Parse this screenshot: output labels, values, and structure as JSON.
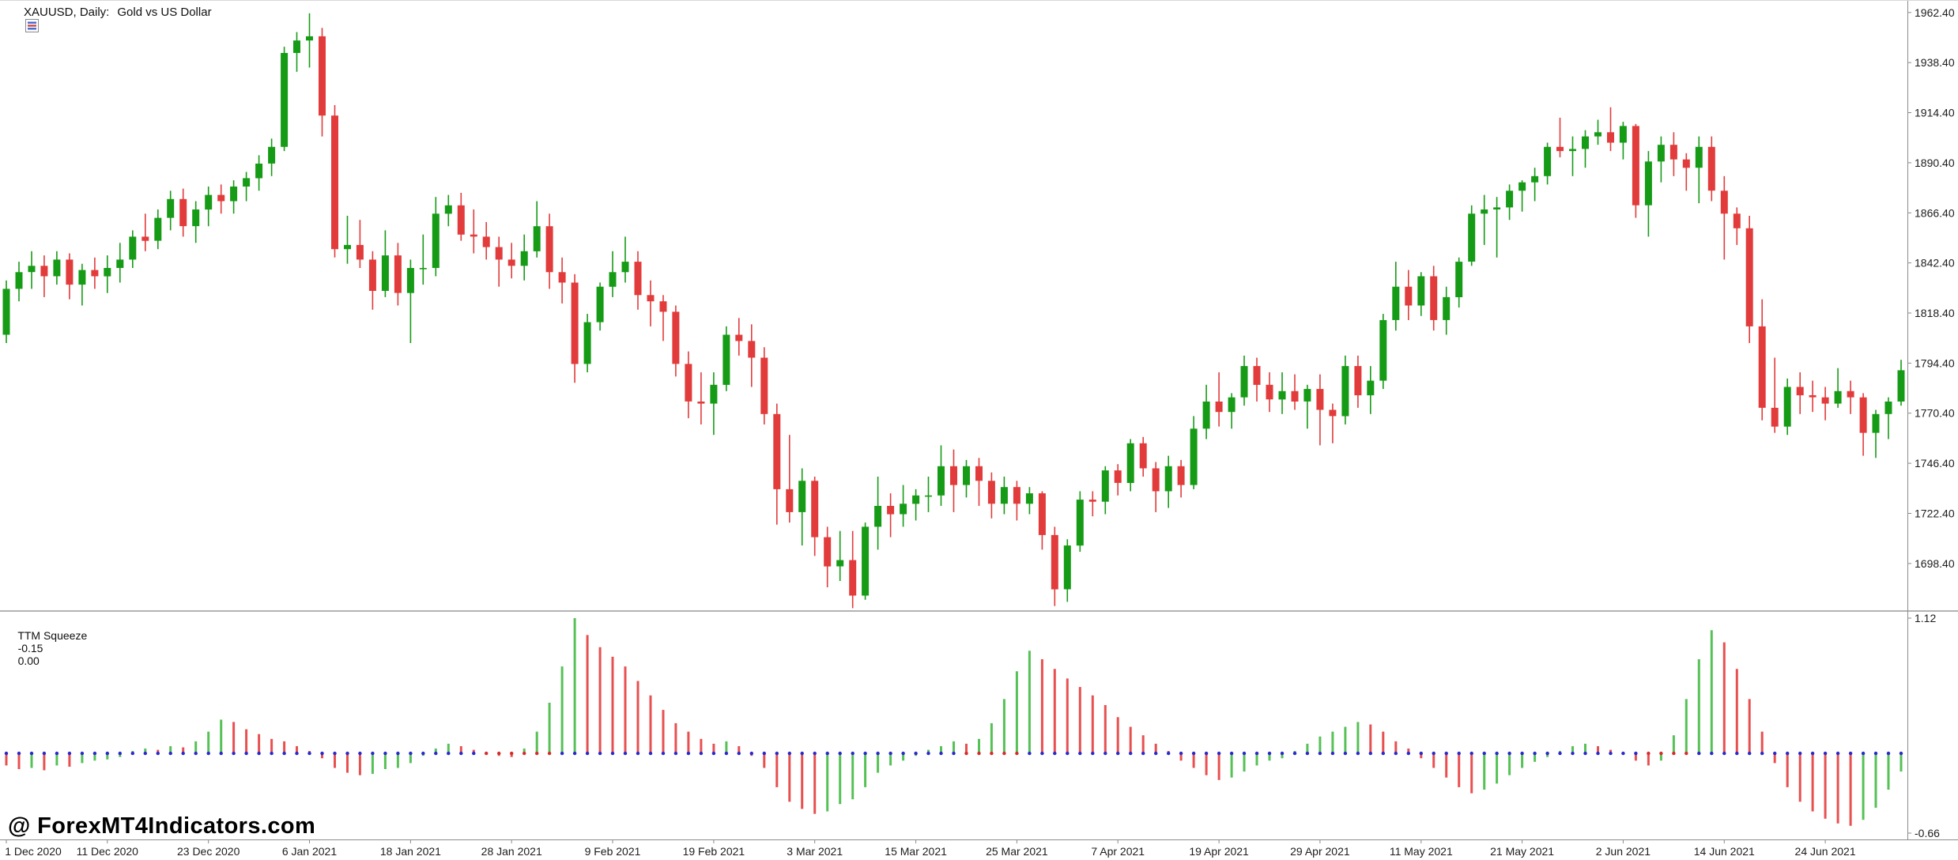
{
  "chart_window": {
    "title": {
      "symbol_period": "XAUUSD, Daily:",
      "description": "Gold vs US Dollar"
    },
    "watermark": "@ ForexMT4Indicators.com"
  },
  "indicator": {
    "name": "TTM Squeeze",
    "value_momentum": "-0.15",
    "value_squeeze": "0.00"
  },
  "colors": {
    "bull": "#169b16",
    "bear": "#e23b3b",
    "hist_up": "#56c156",
    "hist_down": "#e85050",
    "dot_off": "#2929cc",
    "dot_on": "#d52b2b",
    "text": "#1c1c1c",
    "separator": "#b3b3b3",
    "axis_line": "#8a8a8a"
  },
  "chart_data": [
    {
      "type": "candlestick",
      "symbol": "XAUUSD",
      "timeframe": "Daily",
      "title": "XAUUSD, Daily: Gold vs US Dollar",
      "ylim": [
        1676,
        1968
      ],
      "grid": false,
      "price_axis_labels": [
        "1962.40",
        "1938.40",
        "1914.40",
        "1890.40",
        "1866.40",
        "1842.40",
        "1818.40",
        "1794.40",
        "1770.40",
        "1746.40",
        "1722.40",
        "1698.40"
      ],
      "x_ticks": [
        {
          "index": 0,
          "label": "1 Dec 2020"
        },
        {
          "index": 8,
          "label": "11 Dec 2020"
        },
        {
          "index": 16,
          "label": "23 Dec 2020"
        },
        {
          "index": 24,
          "label": "6 Jan 2021"
        },
        {
          "index": 32,
          "label": "18 Jan 2021"
        },
        {
          "index": 40,
          "label": "28 Jan 2021"
        },
        {
          "index": 48,
          "label": "9 Feb 2021"
        },
        {
          "index": 56,
          "label": "19 Feb 2021"
        },
        {
          "index": 64,
          "label": "3 Mar 2021"
        },
        {
          "index": 72,
          "label": "15 Mar 2021"
        },
        {
          "index": 80,
          "label": "25 Mar 2021"
        },
        {
          "index": 88,
          "label": "7 Apr 2021"
        },
        {
          "index": 96,
          "label": "19 Apr 2021"
        },
        {
          "index": 104,
          "label": "29 Apr 2021"
        },
        {
          "index": 112,
          "label": "11 May 2021"
        },
        {
          "index": 120,
          "label": "21 May 2021"
        },
        {
          "index": 128,
          "label": "2 Jun 2021"
        },
        {
          "index": 136,
          "label": "14 Jun 2021"
        },
        {
          "index": 144,
          "label": "24 Jun 2021"
        }
      ],
      "candles": [
        [
          1808,
          1834,
          1804,
          1830
        ],
        [
          1830,
          1843,
          1824,
          1838
        ],
        [
          1838,
          1848,
          1830,
          1841
        ],
        [
          1841,
          1846,
          1826,
          1836
        ],
        [
          1836,
          1848,
          1832,
          1844
        ],
        [
          1844,
          1847,
          1825,
          1832
        ],
        [
          1832,
          1842,
          1822,
          1839
        ],
        [
          1839,
          1845,
          1830,
          1836
        ],
        [
          1836,
          1846,
          1828,
          1840
        ],
        [
          1840,
          1852,
          1833,
          1844
        ],
        [
          1844,
          1858,
          1840,
          1855
        ],
        [
          1855,
          1866,
          1848,
          1853
        ],
        [
          1853,
          1868,
          1849,
          1864
        ],
        [
          1864,
          1877,
          1858,
          1873
        ],
        [
          1873,
          1878,
          1855,
          1860
        ],
        [
          1860,
          1872,
          1852,
          1868
        ],
        [
          1868,
          1879,
          1860,
          1875
        ],
        [
          1875,
          1880,
          1866,
          1872
        ],
        [
          1872,
          1882,
          1866,
          1879
        ],
        [
          1879,
          1886,
          1872,
          1883
        ],
        [
          1883,
          1894,
          1877,
          1890
        ],
        [
          1890,
          1902,
          1884,
          1898
        ],
        [
          1898,
          1946,
          1896,
          1943
        ],
        [
          1943,
          1953,
          1934,
          1949
        ],
        [
          1949,
          1962,
          1936,
          1951
        ],
        [
          1951,
          1955,
          1903,
          1913
        ],
        [
          1913,
          1918,
          1845,
          1849
        ],
        [
          1849,
          1865,
          1842,
          1851
        ],
        [
          1851,
          1863,
          1840,
          1844
        ],
        [
          1844,
          1848,
          1820,
          1829
        ],
        [
          1829,
          1858,
          1826,
          1846
        ],
        [
          1846,
          1852,
          1822,
          1828
        ],
        [
          1828,
          1844,
          1804,
          1840
        ],
        [
          1840,
          1856,
          1832,
          1840
        ],
        [
          1840,
          1874,
          1836,
          1866
        ],
        [
          1866,
          1875,
          1860,
          1870
        ],
        [
          1870,
          1876,
          1853,
          1856
        ],
        [
          1856,
          1868,
          1847,
          1855
        ],
        [
          1855,
          1862,
          1844,
          1850
        ],
        [
          1850,
          1855,
          1831,
          1844
        ],
        [
          1844,
          1852,
          1835,
          1841
        ],
        [
          1841,
          1856,
          1834,
          1848
        ],
        [
          1848,
          1872,
          1845,
          1860
        ],
        [
          1860,
          1866,
          1830,
          1838
        ],
        [
          1838,
          1845,
          1823,
          1833
        ],
        [
          1833,
          1837,
          1785,
          1794
        ],
        [
          1794,
          1818,
          1790,
          1814
        ],
        [
          1814,
          1833,
          1810,
          1831
        ],
        [
          1831,
          1848,
          1826,
          1838
        ],
        [
          1838,
          1855,
          1833,
          1843
        ],
        [
          1843,
          1848,
          1820,
          1827
        ],
        [
          1827,
          1834,
          1812,
          1824
        ],
        [
          1824,
          1827,
          1805,
          1819
        ],
        [
          1819,
          1822,
          1788,
          1794
        ],
        [
          1794,
          1800,
          1768,
          1776
        ],
        [
          1776,
          1790,
          1765,
          1775
        ],
        [
          1775,
          1790,
          1760,
          1784
        ],
        [
          1784,
          1812,
          1781,
          1808
        ],
        [
          1808,
          1816,
          1798,
          1805
        ],
        [
          1805,
          1813,
          1783,
          1797
        ],
        [
          1797,
          1802,
          1765,
          1770
        ],
        [
          1770,
          1775,
          1717,
          1734
        ],
        [
          1734,
          1760,
          1718,
          1723
        ],
        [
          1723,
          1744,
          1707,
          1738
        ],
        [
          1738,
          1740,
          1702,
          1711
        ],
        [
          1711,
          1716,
          1687,
          1697
        ],
        [
          1697,
          1714,
          1690,
          1700
        ],
        [
          1700,
          1714,
          1677,
          1683
        ],
        [
          1683,
          1718,
          1681,
          1716
        ],
        [
          1716,
          1740,
          1705,
          1726
        ],
        [
          1726,
          1732,
          1711,
          1722
        ],
        [
          1722,
          1736,
          1716,
          1727
        ],
        [
          1727,
          1734,
          1719,
          1731
        ],
        [
          1731,
          1740,
          1723,
          1731
        ],
        [
          1731,
          1755,
          1726,
          1745
        ],
        [
          1745,
          1753,
          1723,
          1736
        ],
        [
          1736,
          1748,
          1730,
          1745
        ],
        [
          1745,
          1749,
          1726,
          1738
        ],
        [
          1738,
          1742,
          1720,
          1727
        ],
        [
          1727,
          1740,
          1722,
          1735
        ],
        [
          1735,
          1738,
          1719,
          1727
        ],
        [
          1727,
          1735,
          1722,
          1732
        ],
        [
          1732,
          1733,
          1705,
          1712
        ],
        [
          1712,
          1716,
          1678,
          1686
        ],
        [
          1686,
          1710,
          1680,
          1707
        ],
        [
          1707,
          1733,
          1704,
          1729
        ],
        [
          1729,
          1733,
          1721,
          1728
        ],
        [
          1728,
          1745,
          1722,
          1743
        ],
        [
          1743,
          1746,
          1731,
          1737
        ],
        [
          1737,
          1758,
          1733,
          1756
        ],
        [
          1756,
          1759,
          1740,
          1744
        ],
        [
          1744,
          1747,
          1723,
          1733
        ],
        [
          1733,
          1750,
          1725,
          1745
        ],
        [
          1745,
          1748,
          1730,
          1736
        ],
        [
          1736,
          1769,
          1734,
          1763
        ],
        [
          1763,
          1784,
          1758,
          1776
        ],
        [
          1776,
          1790,
          1764,
          1771
        ],
        [
          1771,
          1780,
          1763,
          1778
        ],
        [
          1778,
          1798,
          1774,
          1793
        ],
        [
          1793,
          1797,
          1776,
          1784
        ],
        [
          1784,
          1790,
          1771,
          1777
        ],
        [
          1777,
          1790,
          1770,
          1781
        ],
        [
          1781,
          1789,
          1772,
          1776
        ],
        [
          1776,
          1784,
          1763,
          1782
        ],
        [
          1782,
          1789,
          1755,
          1772
        ],
        [
          1772,
          1775,
          1756,
          1769
        ],
        [
          1769,
          1798,
          1765,
          1793
        ],
        [
          1793,
          1798,
          1773,
          1779
        ],
        [
          1779,
          1793,
          1770,
          1786
        ],
        [
          1786,
          1818,
          1782,
          1815
        ],
        [
          1815,
          1843,
          1810,
          1831
        ],
        [
          1831,
          1839,
          1815,
          1822
        ],
        [
          1822,
          1838,
          1817,
          1836
        ],
        [
          1836,
          1841,
          1810,
          1815
        ],
        [
          1815,
          1831,
          1808,
          1826
        ],
        [
          1826,
          1845,
          1821,
          1843
        ],
        [
          1843,
          1870,
          1841,
          1866
        ],
        [
          1866,
          1875,
          1851,
          1868
        ],
        [
          1868,
          1874,
          1845,
          1869
        ],
        [
          1869,
          1880,
          1863,
          1877
        ],
        [
          1877,
          1882,
          1867,
          1881
        ],
        [
          1881,
          1888,
          1872,
          1884
        ],
        [
          1884,
          1900,
          1880,
          1898
        ],
        [
          1898,
          1912,
          1893,
          1896
        ],
        [
          1896,
          1903,
          1884,
          1897
        ],
        [
          1897,
          1906,
          1888,
          1903
        ],
        [
          1903,
          1911,
          1899,
          1905
        ],
        [
          1905,
          1917,
          1896,
          1900
        ],
        [
          1900,
          1910,
          1892,
          1908
        ],
        [
          1908,
          1909,
          1864,
          1870
        ],
        [
          1870,
          1896,
          1855,
          1891
        ],
        [
          1891,
          1903,
          1881,
          1899
        ],
        [
          1899,
          1905,
          1884,
          1892
        ],
        [
          1892,
          1895,
          1877,
          1888
        ],
        [
          1888,
          1903,
          1871,
          1898
        ],
        [
          1898,
          1903,
          1872,
          1877
        ],
        [
          1877,
          1884,
          1844,
          1866
        ],
        [
          1866,
          1869,
          1851,
          1859
        ],
        [
          1859,
          1865,
          1804,
          1812
        ],
        [
          1812,
          1825,
          1767,
          1773
        ],
        [
          1773,
          1797,
          1761,
          1764
        ],
        [
          1764,
          1787,
          1760,
          1783
        ],
        [
          1783,
          1790,
          1770,
          1779
        ],
        [
          1779,
          1786,
          1771,
          1778
        ],
        [
          1778,
          1783,
          1767,
          1775
        ],
        [
          1775,
          1792,
          1773,
          1781
        ],
        [
          1781,
          1786,
          1770,
          1778
        ],
        [
          1778,
          1780,
          1750,
          1761
        ],
        [
          1761,
          1772,
          1749,
          1770
        ],
        [
          1770,
          1778,
          1758,
          1776
        ],
        [
          1776,
          1796,
          1774,
          1791
        ]
      ]
    },
    {
      "type": "bar",
      "name": "TTM Squeeze",
      "current_values": [
        "-0.15",
        "0.00"
      ],
      "ylim": [
        -0.66,
        1.12
      ],
      "axis_labels": [
        "1.12",
        "-0.66"
      ],
      "values": [
        -0.1,
        -0.13,
        -0.12,
        -0.14,
        -0.1,
        -0.11,
        -0.08,
        -0.06,
        -0.05,
        -0.03,
        0.02,
        0.04,
        0.03,
        0.06,
        0.05,
        0.1,
        0.18,
        0.28,
        0.26,
        0.2,
        0.16,
        0.12,
        0.1,
        0.06,
        0.02,
        -0.04,
        -0.12,
        -0.16,
        -0.18,
        -0.17,
        -0.13,
        -0.12,
        -0.08,
        -0.02,
        0.04,
        0.08,
        0.06,
        0.03,
        0.01,
        -0.02,
        -0.03,
        0.04,
        0.18,
        0.42,
        0.72,
        1.12,
        0.98,
        0.88,
        0.8,
        0.72,
        0.6,
        0.48,
        0.36,
        0.25,
        0.18,
        0.12,
        0.08,
        0.1,
        0.06,
        -0.02,
        -0.12,
        -0.28,
        -0.4,
        -0.46,
        -0.5,
        -0.48,
        -0.42,
        -0.38,
        -0.28,
        -0.16,
        -0.1,
        -0.06,
        -0.02,
        0.03,
        0.06,
        0.1,
        0.08,
        0.12,
        0.25,
        0.45,
        0.68,
        0.85,
        0.78,
        0.7,
        0.62,
        0.55,
        0.48,
        0.4,
        0.3,
        0.22,
        0.15,
        0.08,
        0.02,
        -0.06,
        -0.12,
        -0.18,
        -0.22,
        -0.2,
        -0.15,
        -0.1,
        -0.06,
        -0.04,
        0.02,
        0.08,
        0.14,
        0.18,
        0.22,
        0.26,
        0.24,
        0.18,
        0.1,
        0.04,
        -0.04,
        -0.12,
        -0.2,
        -0.28,
        -0.33,
        -0.3,
        -0.25,
        -0.18,
        -0.12,
        -0.07,
        -0.03,
        0.02,
        0.06,
        0.08,
        0.06,
        0.03,
        0.0,
        -0.06,
        -0.1,
        -0.06,
        0.15,
        0.45,
        0.78,
        1.02,
        0.92,
        0.7,
        0.45,
        0.18,
        -0.08,
        -0.28,
        -0.4,
        -0.48,
        -0.54,
        -0.58,
        -0.6,
        -0.55,
        -0.45,
        -0.3,
        -0.15
      ],
      "squeeze_on_ranges": [
        [
          38,
          43
        ],
        [
          76,
          80
        ],
        [
          130,
          133
        ]
      ]
    }
  ]
}
